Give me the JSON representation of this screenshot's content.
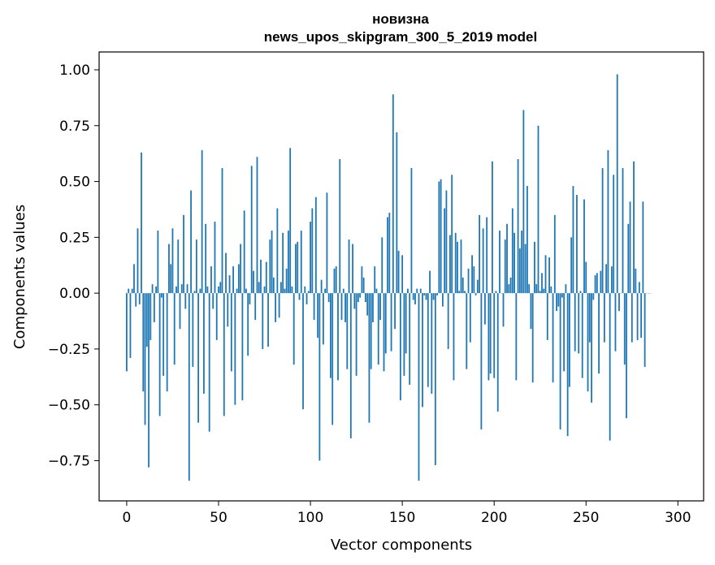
{
  "chart_data": {
    "type": "bar",
    "title": "новизна",
    "subtitle": "news_upos_skipgram_300_5_2019 model",
    "xlabel": "Vector components",
    "ylabel": "Components values",
    "xlim": [
      -15,
      314
    ],
    "ylim": [
      -0.93,
      1.08
    ],
    "xticks": [
      0,
      50,
      100,
      150,
      200,
      250,
      300
    ],
    "yticks": [
      -0.75,
      -0.5,
      -0.25,
      0.0,
      0.25,
      0.5,
      0.75,
      1.0
    ],
    "xtick_labels": [
      "0",
      "50",
      "100",
      "150",
      "200",
      "250",
      "300"
    ],
    "ytick_labels": [
      "−0.75",
      "−0.50",
      "−0.25",
      "0.00",
      "0.25",
      "0.50",
      "0.75",
      "1.00"
    ],
    "bar_color": "#1f77b4",
    "values": [
      -0.35,
      0.02,
      -0.29,
      0.02,
      0.13,
      -0.06,
      0.29,
      -0.05,
      0.63,
      -0.44,
      -0.59,
      -0.24,
      -0.78,
      -0.21,
      0.04,
      -0.13,
      0.03,
      0.28,
      -0.55,
      -0.02,
      -0.37,
      0.0,
      -0.44,
      0.22,
      0.13,
      0.29,
      -0.32,
      0.03,
      0.24,
      -0.16,
      0.04,
      0.35,
      -0.07,
      0.04,
      -0.84,
      0.46,
      -0.33,
      0.01,
      0.24,
      -0.58,
      0.02,
      0.64,
      -0.45,
      0.31,
      0.03,
      -0.62,
      0.12,
      -0.07,
      0.32,
      -0.21,
      0.03,
      0.05,
      0.56,
      -0.55,
      0.18,
      -0.15,
      0.08,
      -0.35,
      0.12,
      -0.5,
      0.02,
      0.13,
      0.22,
      -0.48,
      0.37,
      0.02,
      -0.28,
      -0.05,
      0.57,
      0.1,
      -0.12,
      0.61,
      0.05,
      0.15,
      -0.25,
      0.03,
      0.14,
      -0.24,
      0.24,
      0.28,
      0.07,
      -0.13,
      0.38,
      -0.11,
      0.05,
      0.27,
      0.02,
      0.11,
      0.28,
      0.65,
      0.03,
      -0.32,
      0.22,
      0.23,
      -0.03,
      0.28,
      -0.52,
      0.03,
      -0.05,
      0.01,
      0.32,
      0.38,
      -0.12,
      0.43,
      -0.2,
      -0.75,
      0.06,
      -0.23,
      0.02,
      0.45,
      -0.04,
      -0.38,
      -0.59,
      0.11,
      0.12,
      -0.39,
      0.6,
      -0.12,
      0.02,
      -0.13,
      -0.34,
      0.24,
      -0.65,
      0.22,
      -0.07,
      -0.37,
      -0.04,
      -0.02,
      0.12,
      0.07,
      -0.04,
      -0.1,
      -0.58,
      -0.34,
      -0.13,
      0.12,
      0.02,
      -0.32,
      -0.12,
      0.25,
      -0.35,
      -0.27,
      0.34,
      0.36,
      -0.26,
      0.89,
      -0.16,
      0.72,
      0.19,
      -0.48,
      0.17,
      -0.37,
      -0.27,
      0.02,
      -0.41,
      0.56,
      -0.03,
      -0.05,
      0.02,
      -0.84,
      0.02,
      -0.51,
      -0.01,
      -0.03,
      -0.42,
      0.1,
      -0.45,
      -0.03,
      -0.77,
      -0.01,
      0.5,
      0.51,
      -0.06,
      0.38,
      0.46,
      -0.25,
      0.26,
      0.53,
      -0.39,
      0.27,
      0.23,
      0.01,
      0.24,
      0.07,
      0.01,
      -0.34,
      0.11,
      -0.22,
      0.17,
      0.12,
      -0.01,
      0.06,
      0.35,
      -0.61,
      0.29,
      -0.14,
      0.34,
      -0.39,
      -0.36,
      0.59,
      -0.38,
      0.01,
      -0.53,
      0.28,
      0.0,
      -0.15,
      0.24,
      0.31,
      0.04,
      0.07,
      0.38,
      0.27,
      -0.39,
      0.6,
      0.2,
      0.28,
      0.82,
      0.22,
      0.48,
      0.04,
      -0.16,
      -0.4,
      0.23,
      0.04,
      0.75,
      0.01,
      0.09,
      0.02,
      0.17,
      -0.21,
      0.16,
      0.03,
      -0.4,
      0.35,
      -0.08,
      -0.06,
      -0.61,
      -0.02,
      -0.35,
      0.04,
      -0.64,
      -0.42,
      0.25,
      0.48,
      -0.26,
      0.44,
      -0.27,
      0.01,
      -0.38,
      0.42,
      0.14,
      -0.44,
      -0.22,
      -0.49,
      -0.03,
      0.08,
      0.09,
      -0.36,
      0.1,
      0.56,
      -0.22,
      0.13,
      0.64,
      -0.66,
      0.12,
      0.53,
      -0.26,
      0.98,
      -0.08,
      0.0,
      0.56,
      -0.32,
      -0.56,
      0.31,
      0.41,
      -0.22,
      0.59,
      0.11,
      -0.21,
      0.05,
      -0.2,
      0.41,
      -0.33,
      0.0,
      0.0,
      0.0
    ]
  }
}
